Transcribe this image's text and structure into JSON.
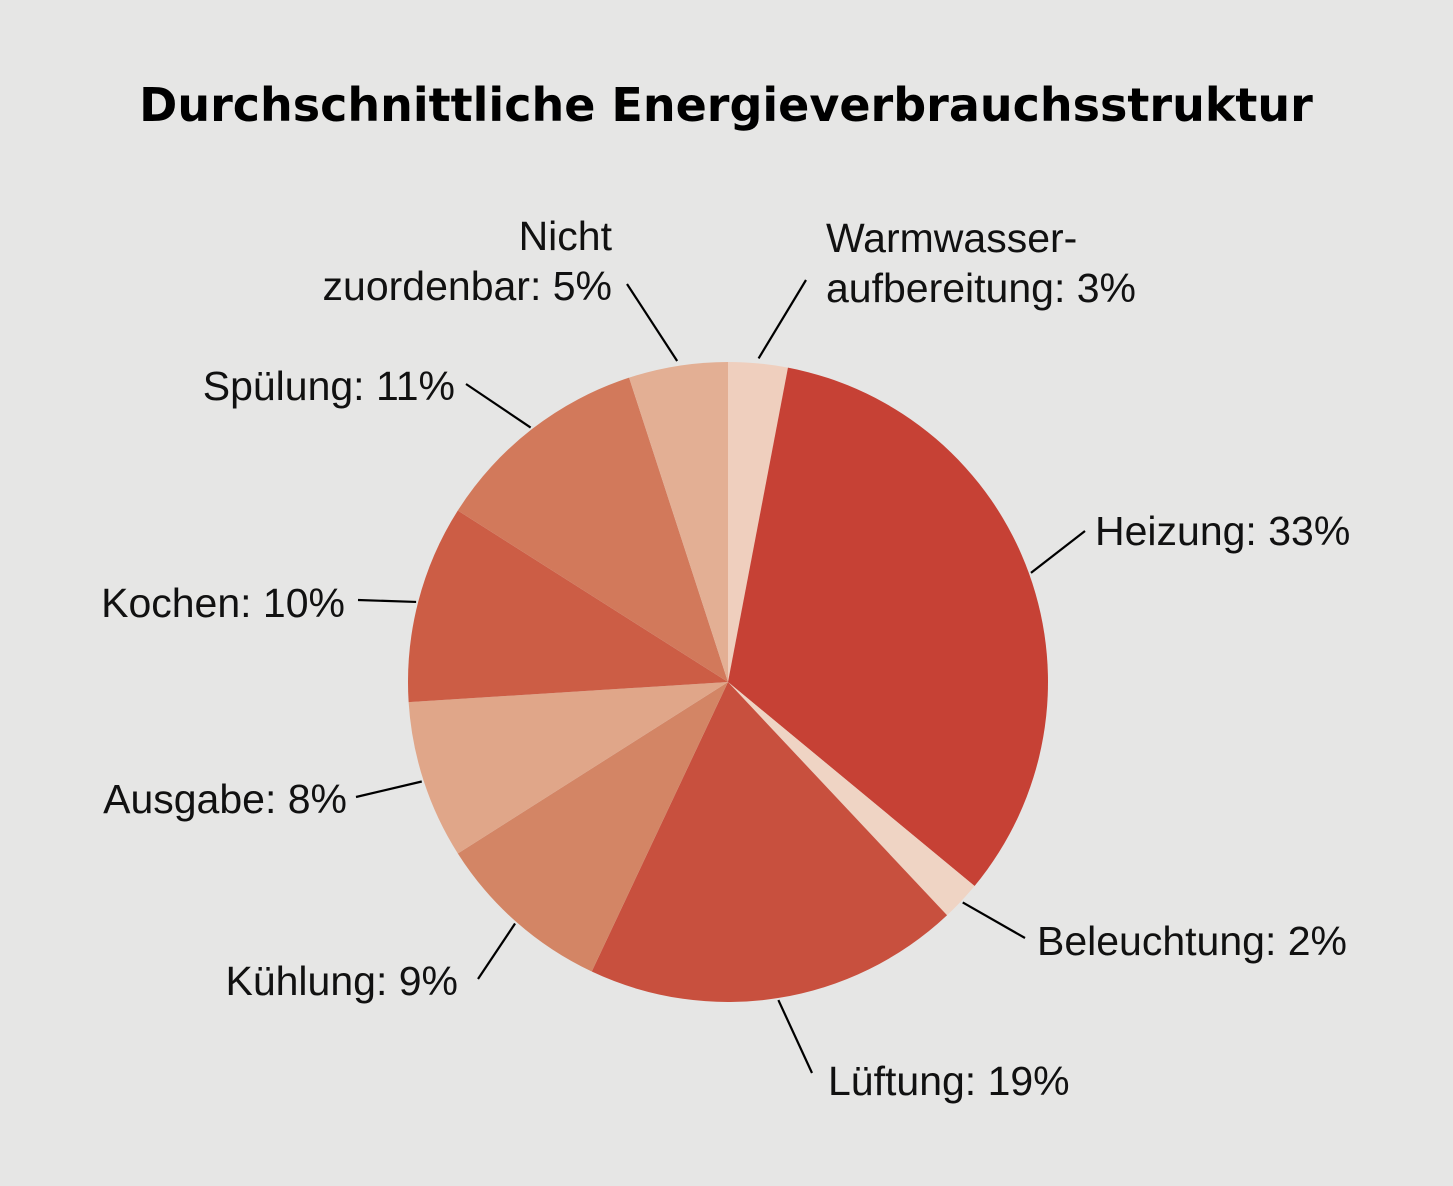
{
  "chart_data": {
    "type": "pie",
    "title": "Durchschnittliche Energieverbrauchsstruktur",
    "slices": [
      {
        "label": "Warmwasser-aufbereitung",
        "label_lines": [
          "Warmwasser-",
          "aufbereitung: 3%"
        ],
        "value": 3,
        "color": "#efcfbe"
      },
      {
        "label": "Heizung",
        "label_lines": [
          "Heizung: 33%"
        ],
        "value": 33,
        "color": "#c64135"
      },
      {
        "label": "Beleuchtung",
        "label_lines": [
          "Beleuchtung: 2%"
        ],
        "value": 2,
        "color": "#efd4c4"
      },
      {
        "label": "Lüftung",
        "label_lines": [
          "Lüftung: 19%"
        ],
        "value": 19,
        "color": "#c8503e"
      },
      {
        "label": "Kühlung",
        "label_lines": [
          "Kühlung: 9%"
        ],
        "value": 9,
        "color": "#d38565"
      },
      {
        "label": "Ausgabe",
        "label_lines": [
          "Ausgabe: 8%"
        ],
        "value": 8,
        "color": "#e0a689"
      },
      {
        "label": "Kochen",
        "label_lines": [
          "Kochen: 10%"
        ],
        "value": 10,
        "color": "#cc5d45"
      },
      {
        "label": "Spülung",
        "label_lines": [
          "Spülung: 11%"
        ],
        "value": 11,
        "color": "#d2795b"
      },
      {
        "label": "Nicht zuordenbar",
        "label_lines": [
          "Nicht",
          "zuordenbar: 5%"
        ],
        "value": 5,
        "color": "#e3af94"
      }
    ],
    "start": "12 o'clock",
    "direction": "clockwise",
    "legend": "none",
    "labels": "outside with leader lines"
  }
}
